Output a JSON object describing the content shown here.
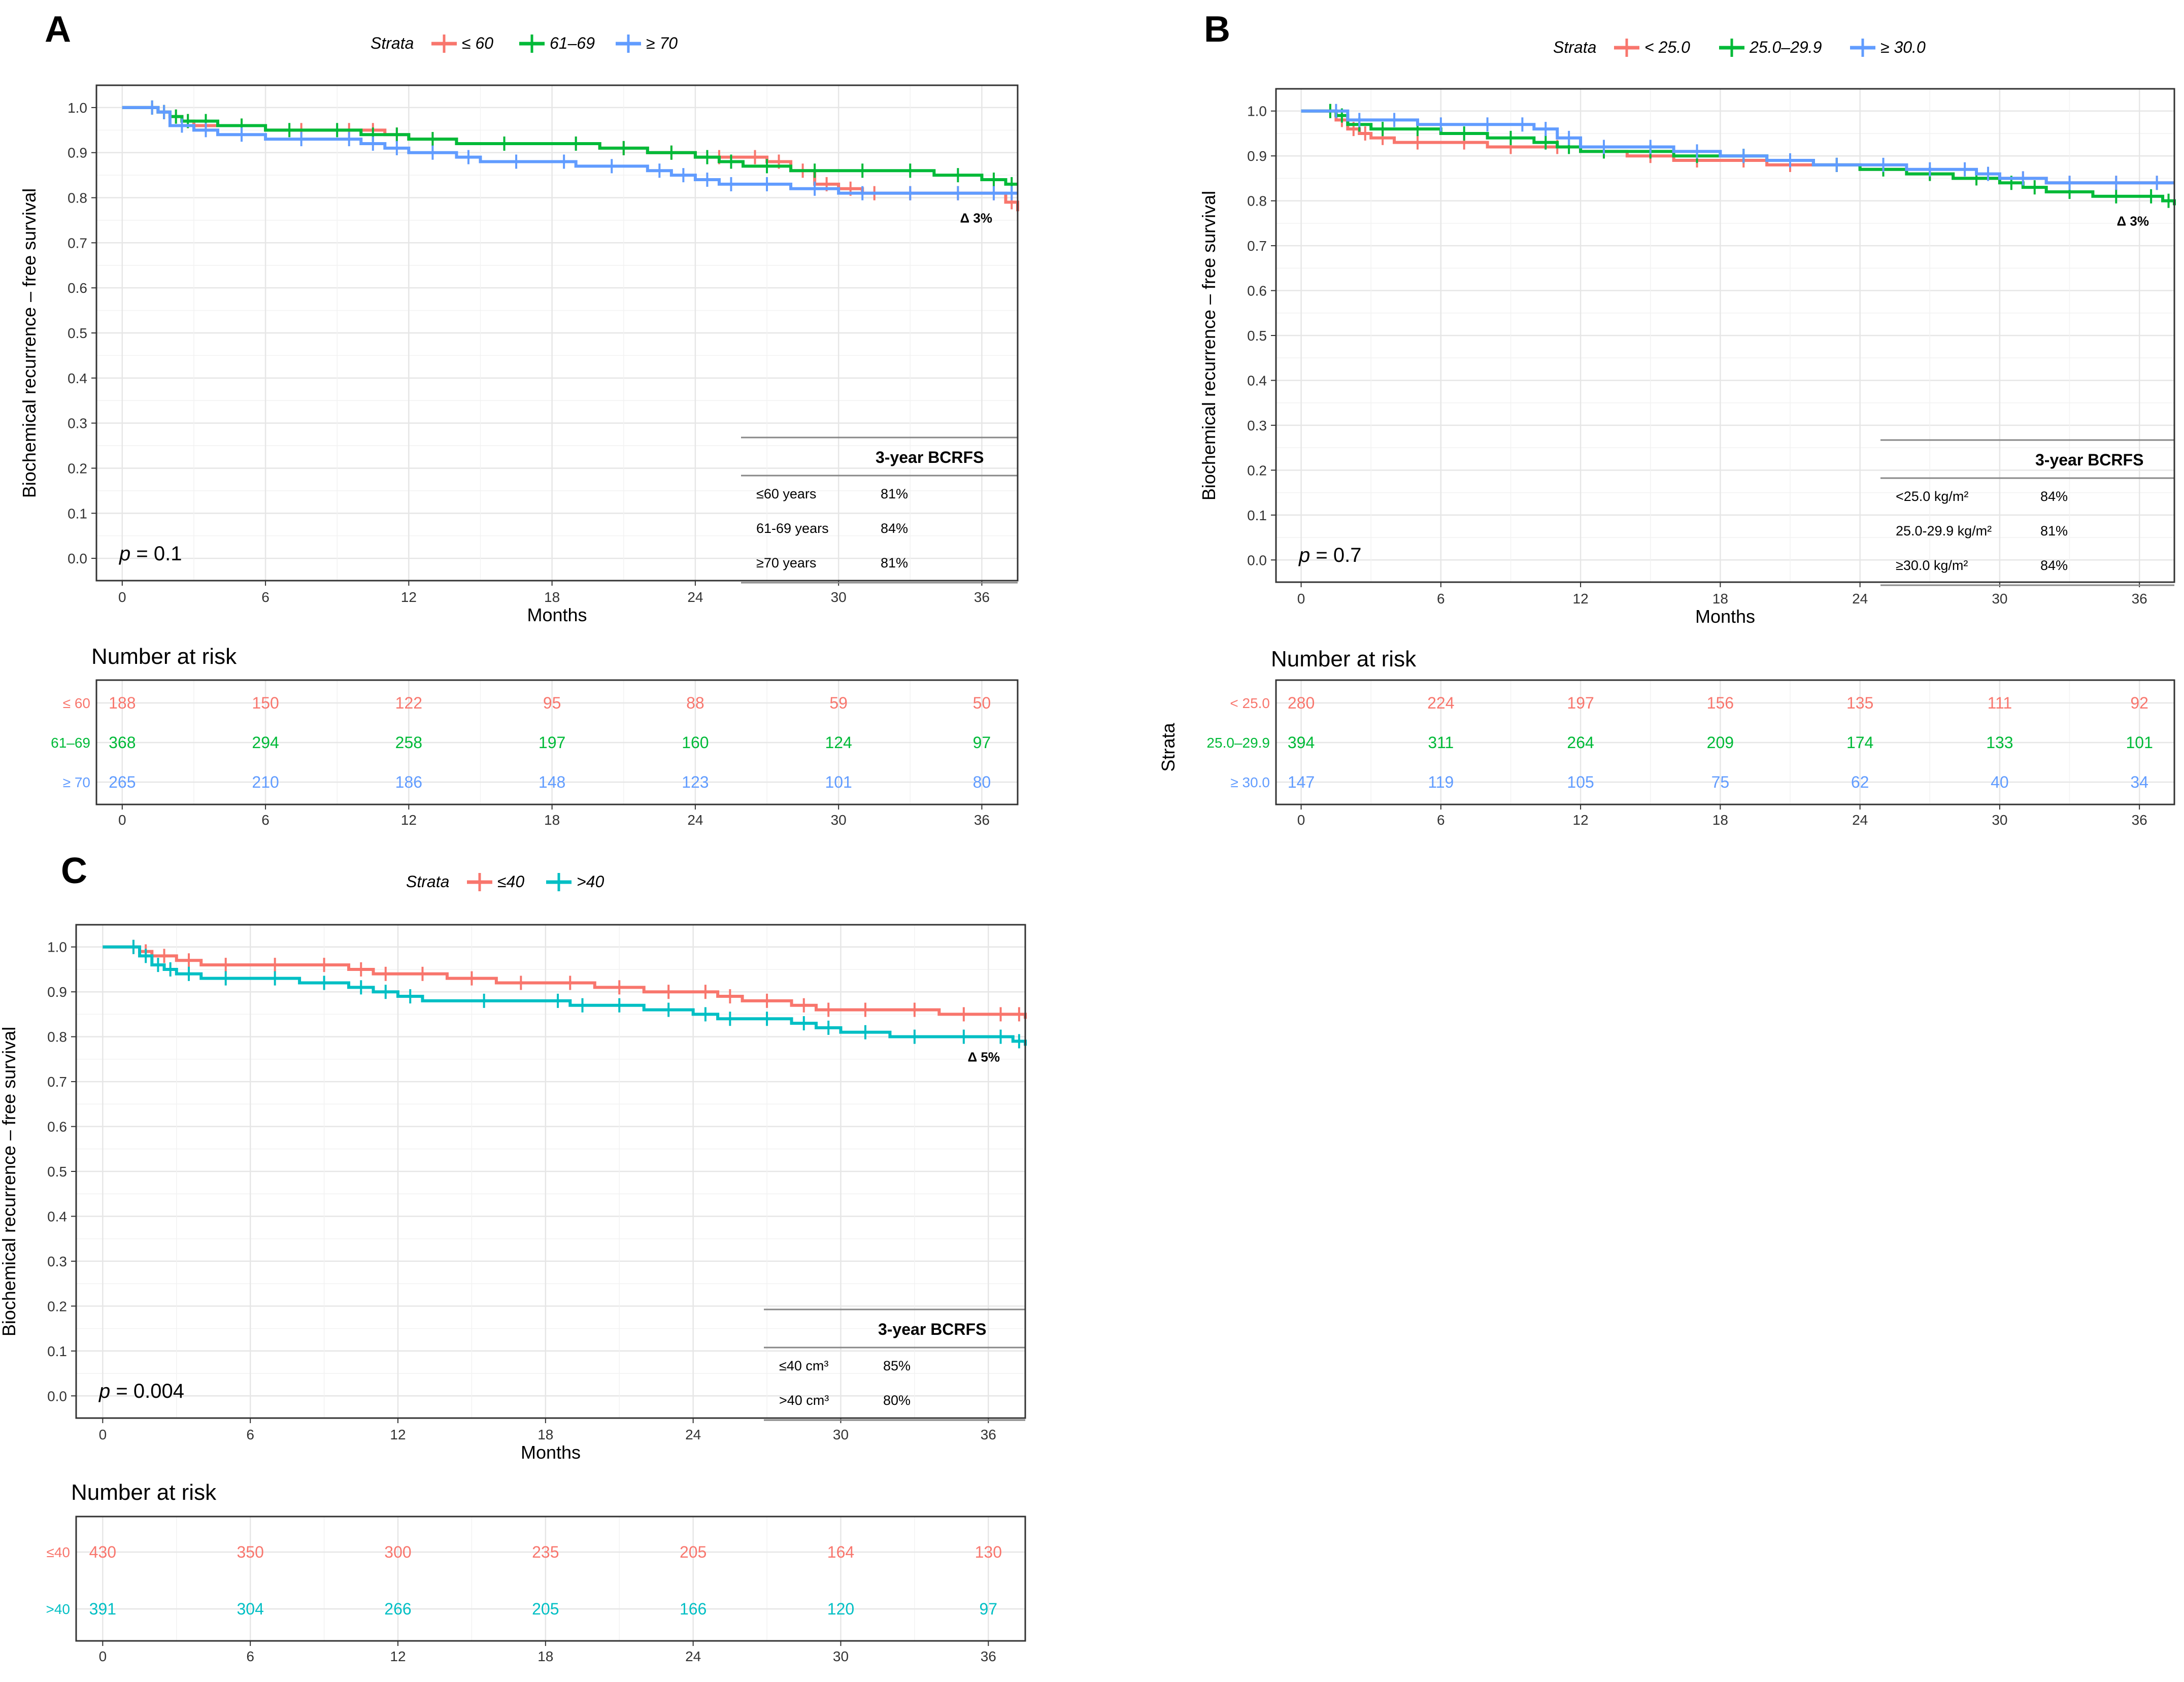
{
  "figure": {
    "y_axis_label": "Biochemical recurrence – free survival",
    "x_axis_label": "Months",
    "risk_table_title": "Number at risk",
    "risk_table_ylabel": "Strata",
    "legend_title": "Strata",
    "table_header": "3-year BCRFS"
  },
  "chart_data": [
    {
      "panel": "A",
      "type": "line",
      "title": "",
      "xlabel": "Months",
      "ylabel": "Biochemical recurrence – free survival",
      "xlim": [
        0,
        37.5
      ],
      "ylim": [
        0,
        1
      ],
      "x_ticks": [
        0,
        6,
        12,
        18,
        24,
        30,
        36
      ],
      "y_ticks": [
        0.0,
        0.1,
        0.2,
        0.3,
        0.4,
        0.5,
        0.6,
        0.7,
        0.8,
        0.9,
        1.0
      ],
      "p_value": "0.1",
      "p_prefix": "p",
      "delta": "Δ 3%",
      "legend": [
        "≤ 60",
        "61–69",
        "≥ 70"
      ],
      "colors": [
        "#F8766D",
        "#00BA38",
        "#619CFF"
      ],
      "series": [
        {
          "name": "≤ 60",
          "x": [
            0,
            1,
            1.5,
            2,
            2.5,
            3,
            4,
            6,
            9,
            10,
            11,
            12,
            14,
            18,
            20,
            22,
            24,
            26,
            27,
            28,
            29,
            30,
            31,
            32,
            34,
            36,
            37,
            37.5
          ],
          "y": [
            1.0,
            1.0,
            0.99,
            0.98,
            0.97,
            0.96,
            0.96,
            0.95,
            0.95,
            0.95,
            0.94,
            0.93,
            0.92,
            0.92,
            0.91,
            0.9,
            0.89,
            0.89,
            0.88,
            0.86,
            0.83,
            0.82,
            0.81,
            0.81,
            0.81,
            0.81,
            0.79,
            0.77
          ]
        },
        {
          "name": "61–69",
          "x": [
            0,
            1,
            1.5,
            2,
            2.5,
            3,
            4,
            6,
            8,
            10,
            11,
            12,
            14,
            18,
            20,
            22,
            24,
            25,
            26,
            28,
            30,
            32,
            34,
            36,
            37,
            37.5
          ],
          "y": [
            1.0,
            1.0,
            0.99,
            0.98,
            0.97,
            0.97,
            0.96,
            0.95,
            0.95,
            0.94,
            0.94,
            0.93,
            0.92,
            0.92,
            0.91,
            0.9,
            0.89,
            0.88,
            0.87,
            0.86,
            0.86,
            0.86,
            0.85,
            0.84,
            0.83,
            0.83
          ]
        },
        {
          "name": "≥ 70",
          "x": [
            0,
            1,
            1.5,
            2,
            3,
            4,
            6,
            9,
            10,
            11,
            12,
            14,
            15,
            18,
            19,
            22,
            23,
            24,
            25,
            26,
            28,
            30,
            32,
            34,
            36,
            37,
            37.5
          ],
          "y": [
            1.0,
            1.0,
            0.99,
            0.96,
            0.95,
            0.94,
            0.93,
            0.93,
            0.92,
            0.91,
            0.9,
            0.89,
            0.88,
            0.88,
            0.87,
            0.86,
            0.85,
            0.84,
            0.83,
            0.83,
            0.82,
            0.81,
            0.81,
            0.81,
            0.81,
            0.81,
            0.81
          ]
        }
      ],
      "bcrfs_table": [
        {
          "label": "≤60 years",
          "value": "81%"
        },
        {
          "label": "61-69 years",
          "value": "84%"
        },
        {
          "label": "≥70 years",
          "value": "81%"
        }
      ],
      "risk": {
        "labels": [
          "≤ 60",
          "61–69",
          "≥ 70"
        ],
        "x": [
          0,
          6,
          12,
          18,
          24,
          30,
          36
        ],
        "values": [
          [
            188,
            150,
            122,
            95,
            88,
            59,
            50
          ],
          [
            368,
            294,
            258,
            197,
            160,
            124,
            97
          ],
          [
            265,
            210,
            186,
            148,
            123,
            101,
            80
          ]
        ]
      }
    },
    {
      "panel": "B",
      "type": "line",
      "title": "",
      "xlabel": "Months",
      "ylabel": "Biochemical recurrence – free survival",
      "xlim": [
        0,
        37.5
      ],
      "ylim": [
        0,
        1
      ],
      "x_ticks": [
        0,
        6,
        12,
        18,
        24,
        30,
        36
      ],
      "y_ticks": [
        0.0,
        0.1,
        0.2,
        0.3,
        0.4,
        0.5,
        0.6,
        0.7,
        0.8,
        0.9,
        1.0
      ],
      "p_value": "0.7",
      "p_prefix": "p",
      "delta": "Δ 3%",
      "legend": [
        "< 25.0",
        "25.0–29.9",
        "≥ 30.0"
      ],
      "colors": [
        "#F8766D",
        "#00BA38",
        "#619CFF"
      ],
      "series": [
        {
          "name": "< 25.0",
          "x": [
            0,
            1,
            1.5,
            2,
            2.5,
            3,
            4,
            6,
            8,
            10,
            12,
            14,
            16,
            18,
            20,
            22,
            24,
            26,
            28,
            30,
            32,
            34,
            36,
            37.5
          ],
          "y": [
            1.0,
            1.0,
            0.98,
            0.96,
            0.95,
            0.94,
            0.93,
            0.93,
            0.92,
            0.92,
            0.91,
            0.9,
            0.89,
            0.89,
            0.88,
            0.88,
            0.87,
            0.86,
            0.85,
            0.85,
            0.84,
            0.84,
            0.84,
            0.84
          ]
        },
        {
          "name": "25.0–29.9",
          "x": [
            0,
            1,
            1.5,
            2,
            3,
            4,
            6,
            8,
            10,
            11,
            12,
            14,
            16,
            18,
            20,
            22,
            24,
            26,
            28,
            30,
            31,
            32,
            34,
            36,
            37,
            37.5
          ],
          "y": [
            1.0,
            1.0,
            0.99,
            0.97,
            0.96,
            0.96,
            0.95,
            0.94,
            0.93,
            0.92,
            0.91,
            0.91,
            0.9,
            0.9,
            0.89,
            0.88,
            0.87,
            0.86,
            0.85,
            0.84,
            0.83,
            0.82,
            0.81,
            0.81,
            0.8,
            0.79
          ]
        },
        {
          "name": "≥ 30.0",
          "x": [
            0,
            1,
            2,
            3,
            5,
            7,
            9,
            10,
            11,
            12,
            14,
            16,
            18,
            20,
            22,
            24,
            26,
            28,
            29,
            30,
            32,
            34,
            36,
            37.5
          ],
          "y": [
            1.0,
            1.0,
            0.98,
            0.98,
            0.97,
            0.97,
            0.97,
            0.96,
            0.94,
            0.92,
            0.92,
            0.91,
            0.9,
            0.89,
            0.88,
            0.88,
            0.87,
            0.87,
            0.86,
            0.85,
            0.84,
            0.84,
            0.84,
            0.84
          ]
        }
      ],
      "bcrfs_table": [
        {
          "label": "<25.0 kg/m²",
          "value": "84%"
        },
        {
          "label": "25.0-29.9 kg/m²",
          "value": "81%"
        },
        {
          "label": "≥30.0 kg/m²",
          "value": "84%"
        }
      ],
      "risk": {
        "labels": [
          "< 25.0",
          "25.0–29.9",
          "≥ 30.0"
        ],
        "x": [
          0,
          6,
          12,
          18,
          24,
          30,
          36
        ],
        "values": [
          [
            280,
            224,
            197,
            156,
            135,
            111,
            92
          ],
          [
            394,
            311,
            264,
            209,
            174,
            133,
            101
          ],
          [
            147,
            119,
            105,
            75,
            62,
            40,
            34
          ]
        ]
      }
    },
    {
      "panel": "C",
      "type": "line",
      "title": "",
      "xlabel": "Months",
      "ylabel": "Biochemical recurrence – free survival",
      "xlim": [
        0,
        37.5
      ],
      "ylim": [
        0,
        1
      ],
      "x_ticks": [
        0,
        6,
        12,
        18,
        24,
        30,
        36
      ],
      "y_ticks": [
        0.0,
        0.1,
        0.2,
        0.3,
        0.4,
        0.5,
        0.6,
        0.7,
        0.8,
        0.9,
        1.0
      ],
      "p_value": "0.004",
      "p_prefix": "p",
      "delta": "Δ 5%",
      "legend": [
        "≤40",
        ">40"
      ],
      "colors": [
        "#F8766D",
        "#00BFC4"
      ],
      "series": [
        {
          "name": "≤40",
          "x": [
            0,
            1,
            1.5,
            2,
            3,
            4,
            6,
            8,
            10,
            11,
            12,
            14,
            16,
            18,
            20,
            22,
            24,
            25,
            26,
            28,
            29,
            30,
            32,
            34,
            36,
            37,
            37.5
          ],
          "y": [
            1.0,
            1.0,
            0.99,
            0.98,
            0.97,
            0.96,
            0.96,
            0.96,
            0.95,
            0.94,
            0.94,
            0.93,
            0.92,
            0.92,
            0.91,
            0.9,
            0.9,
            0.89,
            0.88,
            0.87,
            0.86,
            0.86,
            0.86,
            0.85,
            0.85,
            0.85,
            0.84
          ]
        },
        {
          "name": ">40",
          "x": [
            0,
            1,
            1.5,
            2,
            2.5,
            3,
            4,
            6,
            8,
            10,
            11,
            12,
            13,
            18,
            19,
            20,
            22,
            24,
            25,
            26,
            28,
            29,
            30,
            32,
            34,
            36,
            37,
            37.5
          ],
          "y": [
            1.0,
            1.0,
            0.98,
            0.96,
            0.95,
            0.94,
            0.93,
            0.93,
            0.92,
            0.91,
            0.9,
            0.89,
            0.88,
            0.88,
            0.87,
            0.87,
            0.86,
            0.85,
            0.84,
            0.84,
            0.83,
            0.82,
            0.81,
            0.8,
            0.8,
            0.8,
            0.79,
            0.78
          ]
        }
      ],
      "bcrfs_table": [
        {
          "label": "≤40 cm³",
          "value": "85%"
        },
        {
          "label": ">40 cm³",
          "value": "80%"
        }
      ],
      "risk": {
        "labels": [
          "≤40",
          ">40"
        ],
        "x": [
          0,
          6,
          12,
          18,
          24,
          30,
          36
        ],
        "values": [
          [
            430,
            350,
            300,
            235,
            205,
            164,
            130
          ],
          [
            391,
            304,
            266,
            205,
            166,
            120,
            97
          ]
        ]
      }
    }
  ]
}
